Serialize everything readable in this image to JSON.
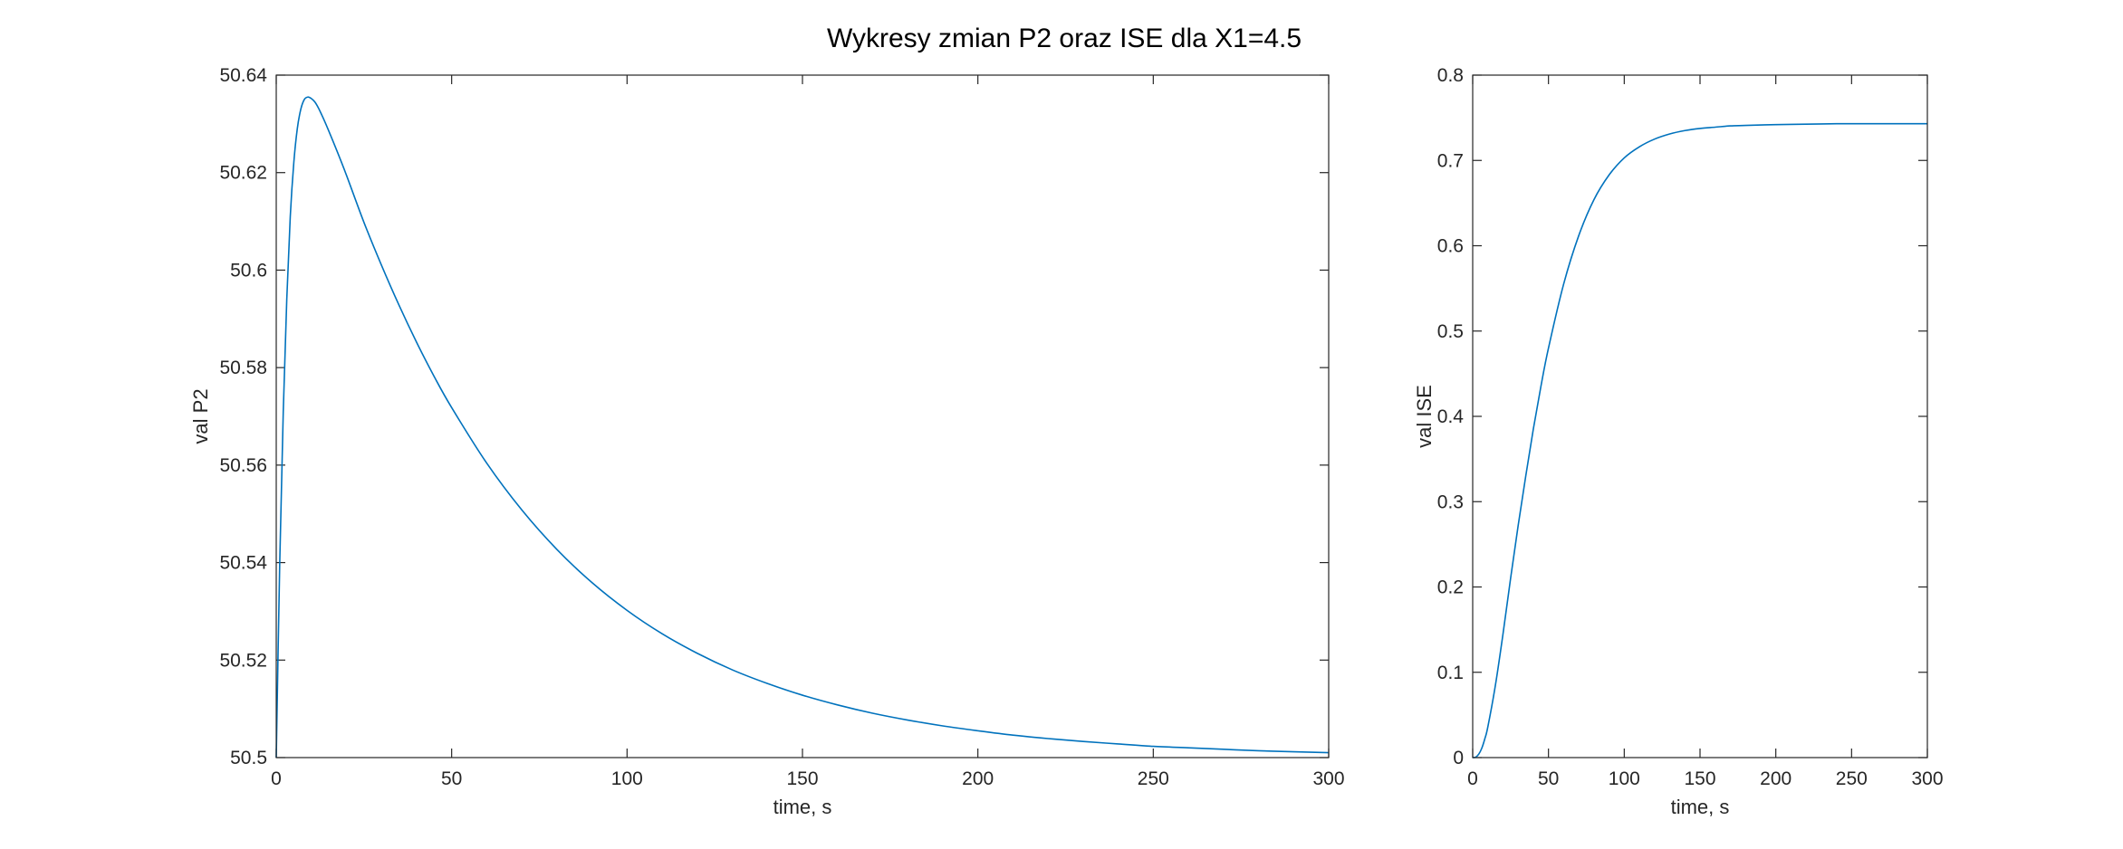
{
  "figure": {
    "title": "Wykresy zmian P2 oraz ISE dla X1=4.5",
    "background": "#ffffff",
    "axes_color": "#262626",
    "line_color": "#0072bd"
  },
  "chart_data": [
    {
      "type": "line",
      "title": "",
      "xlabel": "time, s",
      "ylabel": "val P2",
      "xlim": [
        0,
        300
      ],
      "ylim": [
        50.5,
        50.64
      ],
      "xticks": [
        0,
        50,
        100,
        150,
        200,
        250,
        300
      ],
      "yticks": [
        50.5,
        50.52,
        50.54,
        50.56,
        50.58,
        50.6,
        50.62,
        50.64
      ],
      "xtick_labels": [
        "0",
        "50",
        "100",
        "150",
        "200",
        "250",
        "300"
      ],
      "ytick_labels": [
        "50.5",
        "50.52",
        "50.54",
        "50.56",
        "50.58",
        "50.6",
        "50.62",
        "50.64"
      ],
      "grid": false,
      "series": [
        {
          "color": "#0072bd",
          "x": [
            0,
            1,
            2,
            3,
            4,
            5,
            6,
            7,
            8,
            9,
            10,
            11,
            12,
            13,
            14,
            15,
            17,
            20,
            25,
            30,
            35,
            40,
            45,
            50,
            60,
            70,
            80,
            90,
            100,
            110,
            120,
            130,
            140,
            150,
            160,
            170,
            180,
            190,
            200,
            210,
            220,
            230,
            240,
            250,
            260,
            270,
            280,
            290,
            300
          ],
          "y": [
            50.5,
            50.54,
            50.571,
            50.594,
            50.611,
            50.622,
            50.629,
            50.633,
            50.635,
            50.6355,
            50.6352,
            50.6345,
            50.6333,
            50.6318,
            50.6302,
            50.6285,
            50.625,
            50.6195,
            50.6098,
            50.601,
            50.5928,
            50.5852,
            50.5782,
            50.5718,
            50.5604,
            50.5508,
            50.5427,
            50.5359,
            50.5302,
            50.5254,
            50.5214,
            50.518,
            50.5152,
            50.5128,
            50.5108,
            50.5091,
            50.5077,
            50.5065,
            50.5055,
            50.5046,
            50.5039,
            50.5033,
            50.5028,
            50.5023,
            50.502,
            50.5017,
            50.5014,
            50.5012,
            50.501
          ]
        }
      ]
    },
    {
      "type": "line",
      "title": "",
      "xlabel": "time, s",
      "ylabel": "val ISE",
      "xlim": [
        0,
        300
      ],
      "ylim": [
        0,
        0.8
      ],
      "xticks": [
        0,
        50,
        100,
        150,
        200,
        250,
        300
      ],
      "yticks": [
        0,
        0.1,
        0.2,
        0.3,
        0.4,
        0.5,
        0.6,
        0.7,
        0.8
      ],
      "xtick_labels": [
        "0",
        "50",
        "100",
        "150",
        "200",
        "250",
        "300"
      ],
      "ytick_labels": [
        "0",
        "0.1",
        "0.2",
        "0.3",
        "0.4",
        "0.5",
        "0.6",
        "0.7",
        "0.8"
      ],
      "grid": false,
      "series": [
        {
          "color": "#0072bd",
          "x": [
            0,
            2,
            4,
            6,
            8,
            10,
            15,
            20,
            25,
            30,
            35,
            40,
            45,
            50,
            60,
            70,
            80,
            90,
            100,
            110,
            120,
            130,
            140,
            150,
            160,
            170,
            180,
            200,
            220,
            240,
            260,
            280,
            300
          ],
          "y": [
            0,
            0.0005,
            0.004,
            0.011,
            0.022,
            0.036,
            0.085,
            0.145,
            0.21,
            0.272,
            0.33,
            0.385,
            0.435,
            0.48,
            0.555,
            0.612,
            0.654,
            0.683,
            0.703,
            0.716,
            0.725,
            0.731,
            0.735,
            0.7375,
            0.739,
            0.7405,
            0.741,
            0.742,
            0.7425,
            0.743,
            0.743,
            0.743,
            0.743
          ]
        }
      ]
    }
  ]
}
